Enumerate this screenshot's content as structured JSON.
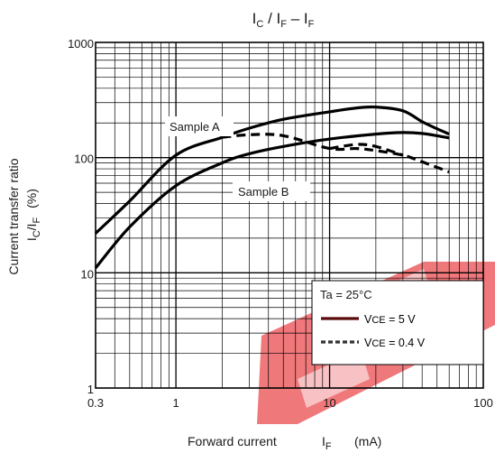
{
  "chart_data": {
    "type": "line",
    "title": {
      "a": "I",
      "a_sub": "C",
      "b": " / I",
      "b_sub": "F",
      "c": " – I",
      "c_sub": "F"
    },
    "xaxis": {
      "scale": "log",
      "range": [
        0.3,
        100
      ],
      "ticks": [
        0.3,
        1,
        10,
        100
      ],
      "tick_labels": [
        "0.3",
        "1",
        "10",
        "100"
      ],
      "label_main": "Forward current",
      "label_sym": "I",
      "label_sub": "F",
      "label_unit": "(mA)"
    },
    "yaxis": {
      "scale": "log",
      "range": [
        1,
        1000
      ],
      "ticks": [
        1,
        10,
        100,
        1000
      ],
      "tick_labels": [
        "1",
        "10",
        "100",
        "1000"
      ],
      "label_line1": "Current transfer ratio",
      "label_sym1": "I",
      "label_sub1": "C",
      "label_sep": "/I",
      "label_sub2": "F",
      "label_unit": "(%)"
    },
    "grid": true,
    "legend": {
      "position": "bottom-right",
      "ta": "Ta = 25°C",
      "entries": [
        {
          "sym": "V",
          "sub": "CE",
          "rest": " = 5 V",
          "style": "solid"
        },
        {
          "sym": "V",
          "sub": "CE",
          "rest": " = 0.4 V",
          "style": "dashed"
        }
      ]
    },
    "annotations": [
      {
        "text": "Sample A",
        "series": "A"
      },
      {
        "text": "Sample B",
        "series": "B"
      }
    ],
    "series": [
      {
        "sample": "A",
        "condition": "VCE = 5 V",
        "style": "solid",
        "x": [
          0.3,
          0.5,
          1,
          2,
          3,
          5,
          10,
          15,
          20,
          30,
          40,
          50,
          60
        ],
        "y": [
          22,
          42,
          105,
          150,
          180,
          215,
          250,
          270,
          275,
          255,
          205,
          178,
          160
        ]
      },
      {
        "sample": "A",
        "condition": "VCE = 0.4 V",
        "style": "dashed",
        "x": [
          2,
          3,
          5,
          10,
          15,
          20,
          30,
          40,
          60
        ],
        "y": [
          150,
          158,
          155,
          120,
          120,
          115,
          105,
          92,
          75
        ]
      },
      {
        "sample": "B",
        "condition": "VCE = 5 V",
        "style": "solid",
        "x": [
          0.3,
          0.5,
          1,
          2,
          3,
          5,
          10,
          20,
          30,
          40,
          50,
          60
        ],
        "y": [
          11,
          25,
          57,
          90,
          108,
          125,
          145,
          160,
          165,
          162,
          155,
          148
        ]
      },
      {
        "sample": "B",
        "condition": "VCE = 0.4 V",
        "style": "dashed",
        "x": [
          10,
          15,
          20,
          30
        ],
        "y": [
          120,
          130,
          125,
          105
        ]
      }
    ]
  },
  "watermark": {
    "color": "#e8343a"
  }
}
